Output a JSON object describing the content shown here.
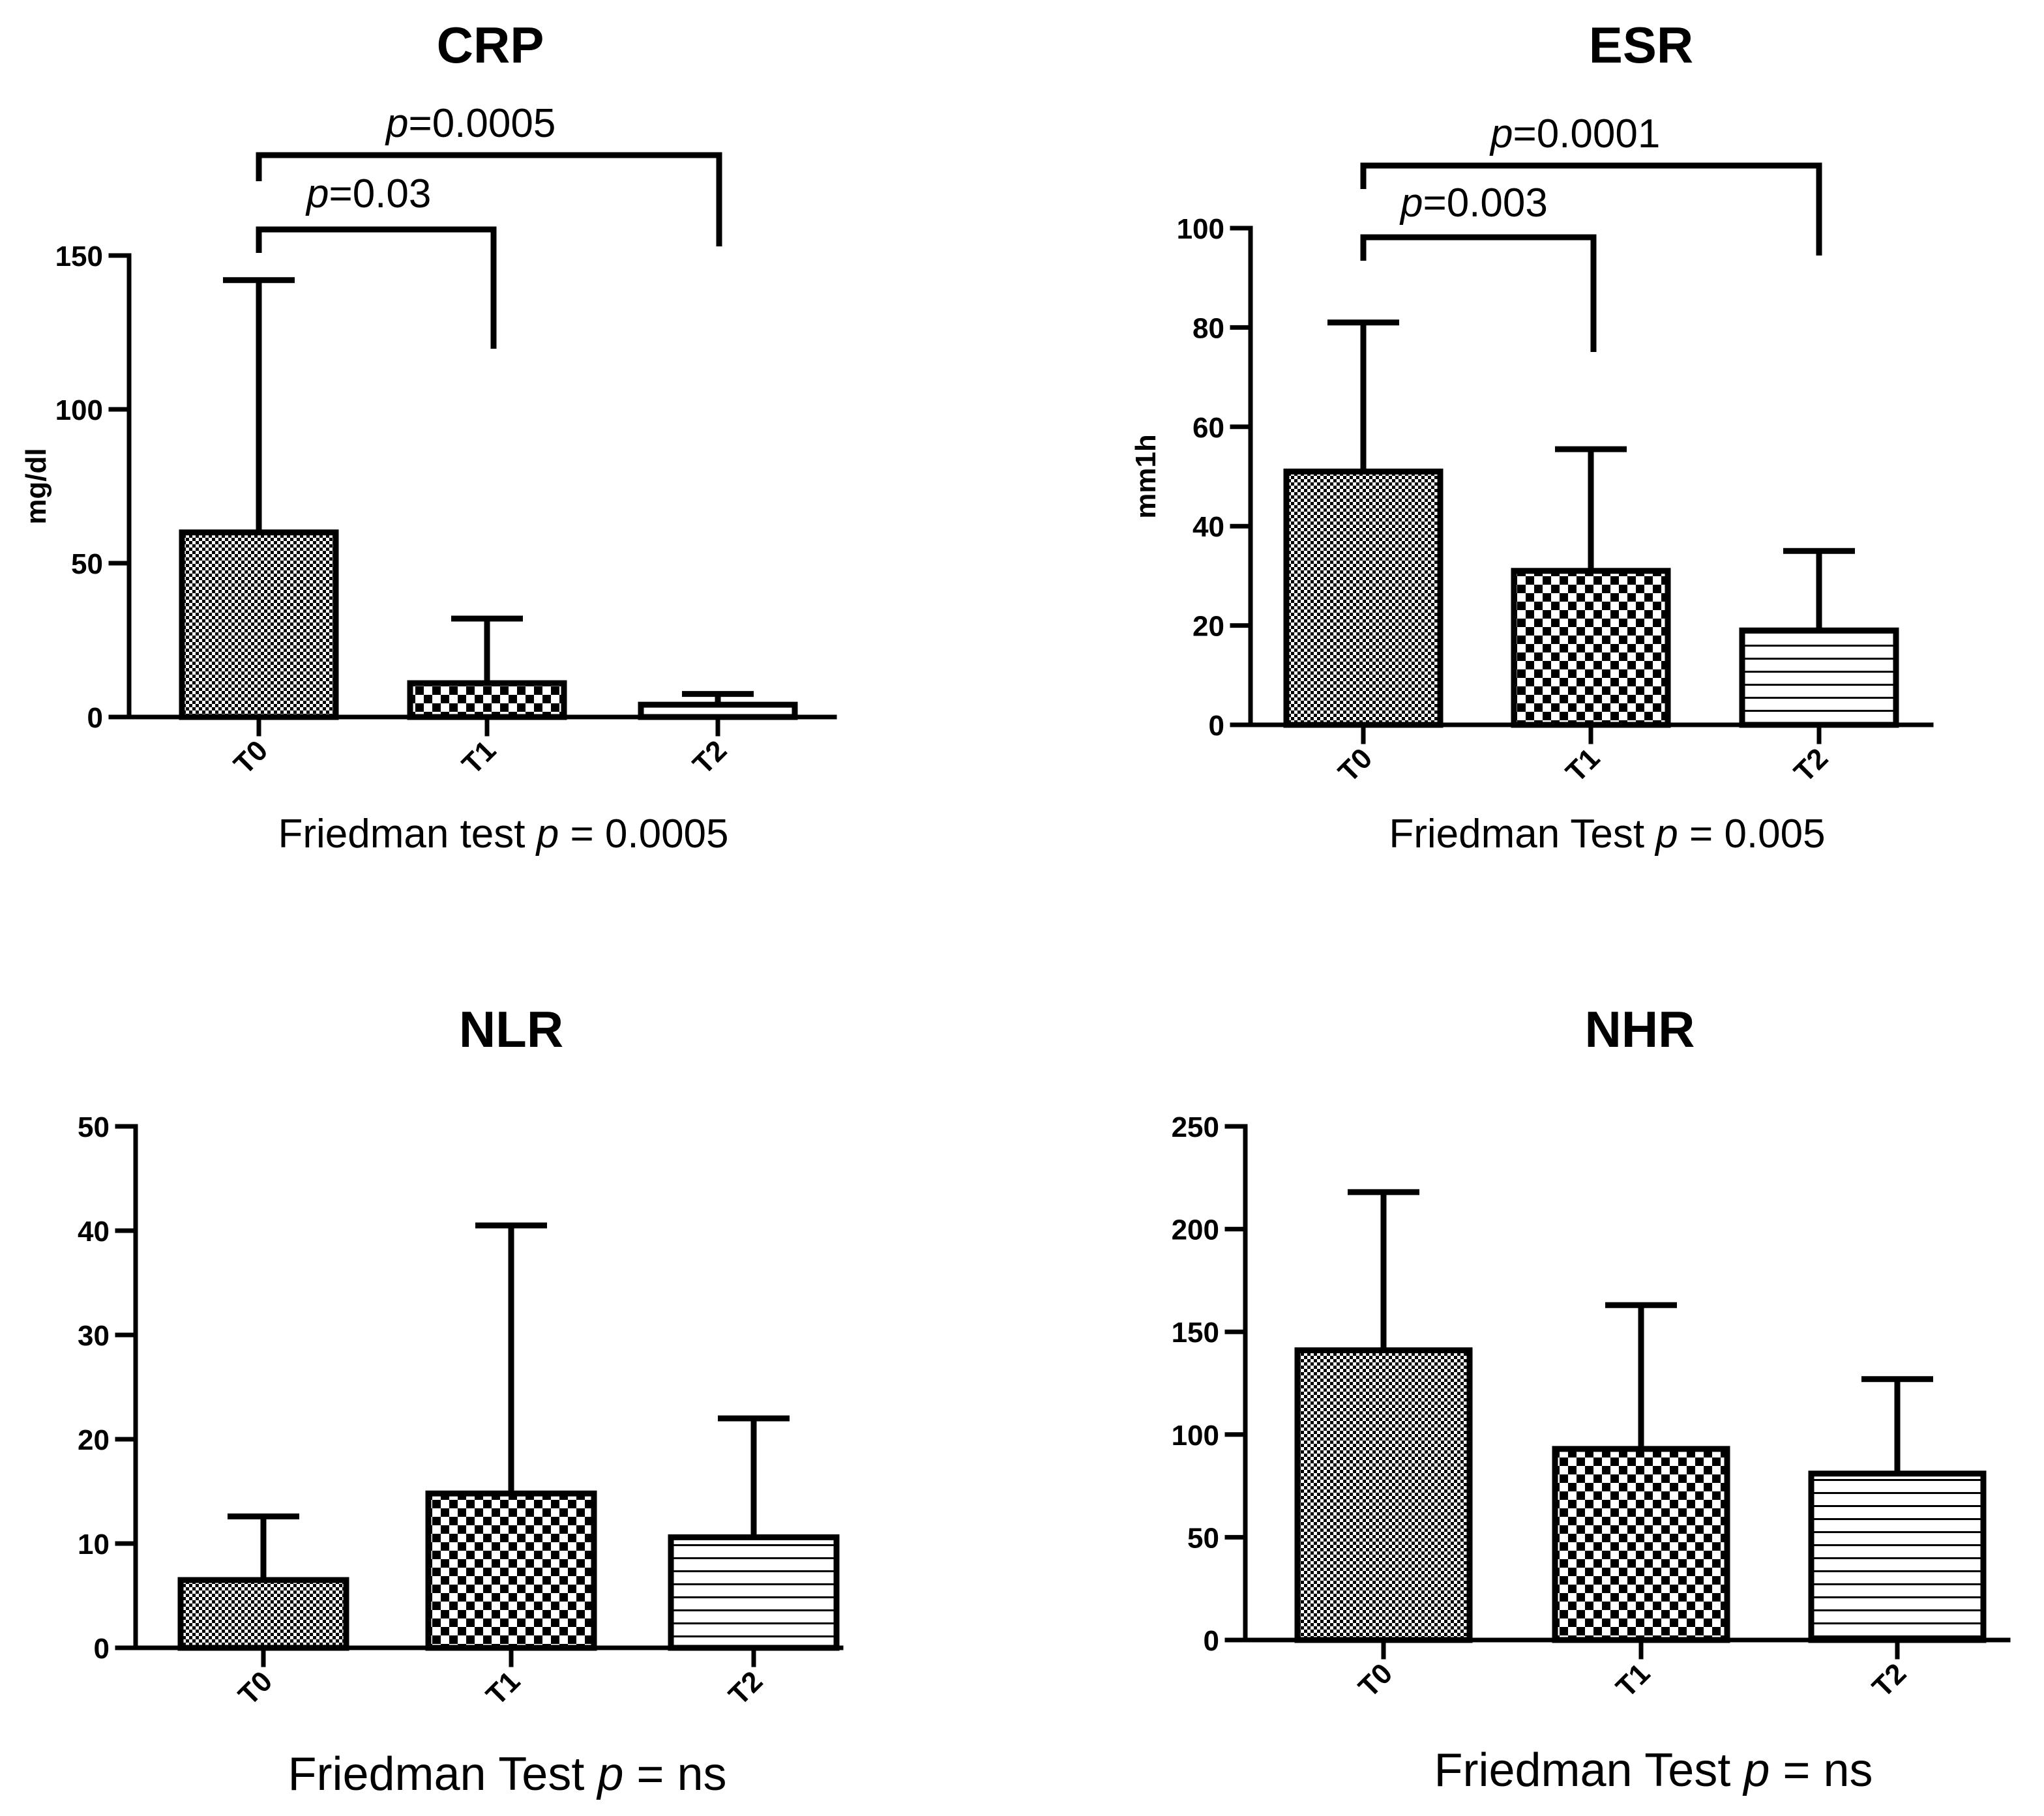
{
  "chart_data": [
    {
      "type": "bar",
      "title": "CRP",
      "ylabel": "mg/dl",
      "xlabel": "",
      "categories": [
        "T0",
        "T1",
        "T2"
      ],
      "values": [
        60,
        11,
        4
      ],
      "error_upper": [
        142,
        32,
        7.5
      ],
      "ylim": [
        0,
        150
      ],
      "yticks": [
        0,
        50,
        100,
        150
      ],
      "patterns": [
        "fine-check",
        "check",
        "blank"
      ],
      "footer": {
        "prefix": "Friedman test ",
        "p": "p",
        "suffix": " = 0.0005"
      },
      "comparisons": [
        {
          "from": "T0",
          "to": "T1",
          "p": "p",
          "text": "=0.03"
        },
        {
          "from": "T0",
          "to": "T2",
          "p": "p",
          "text": "=0.0005"
        }
      ]
    },
    {
      "type": "bar",
      "title": "ESR",
      "ylabel": "mm1h",
      "xlabel": "",
      "categories": [
        "T0",
        "T1",
        "T2"
      ],
      "values": [
        51,
        31,
        19
      ],
      "error_upper": [
        81,
        55.5,
        35
      ],
      "ylim": [
        0,
        100
      ],
      "yticks": [
        0,
        20,
        40,
        60,
        80,
        100
      ],
      "patterns": [
        "fine-check",
        "check",
        "hlines"
      ],
      "footer": {
        "prefix": "Friedman Test ",
        "p": "p",
        "suffix": " = 0.005"
      },
      "comparisons": [
        {
          "from": "T0",
          "to": "T1",
          "p": "p",
          "text": "=0.003"
        },
        {
          "from": "T0",
          "to": "T2",
          "p": "p",
          "text": "=0.0001"
        }
      ]
    },
    {
      "type": "bar",
      "title": "NLR",
      "ylabel": "",
      "xlabel": "",
      "categories": [
        "T0",
        "T1",
        "T2"
      ],
      "values": [
        6.5,
        14.8,
        10.6
      ],
      "error_upper": [
        12.6,
        40.5,
        22
      ],
      "ylim": [
        0,
        50
      ],
      "yticks": [
        0,
        10,
        20,
        30,
        40,
        50
      ],
      "patterns": [
        "fine-check",
        "check",
        "hlines"
      ],
      "footer": {
        "prefix": "Friedman Test ",
        "p": "p",
        "suffix": " = ns"
      },
      "comparisons": []
    },
    {
      "type": "bar",
      "title": "NHR",
      "ylabel": "",
      "xlabel": "",
      "categories": [
        "T0",
        "T1",
        "T2"
      ],
      "values": [
        141,
        93,
        81
      ],
      "error_upper": [
        218,
        163,
        127
      ],
      "ylim": [
        0,
        250
      ],
      "yticks": [
        0,
        50,
        100,
        150,
        200,
        250
      ],
      "patterns": [
        "fine-check",
        "check",
        "hlines"
      ],
      "footer": {
        "prefix": "Friedman Test ",
        "p": "p",
        "suffix": " = ns"
      },
      "comparisons": []
    }
  ]
}
